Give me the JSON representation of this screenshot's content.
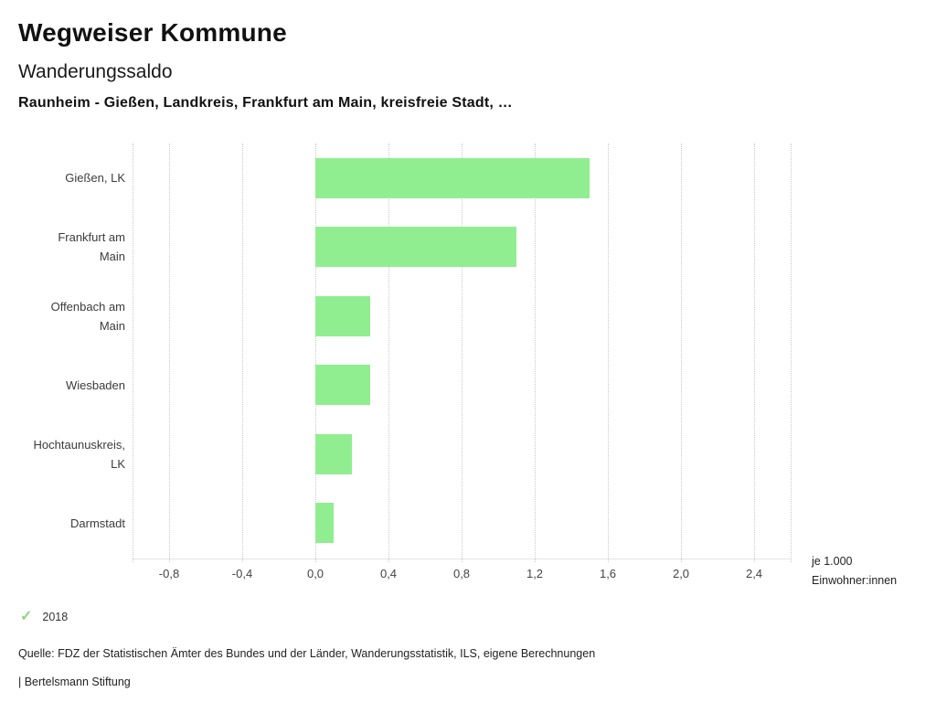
{
  "header": {
    "title": "Wegweiser Kommune",
    "subtitle": "Wanderungssaldo",
    "description": "Raunheim - Gießen, Landkreis, Frankfurt am Main, kreisfreie Stadt, …"
  },
  "chart_data": {
    "type": "bar",
    "orientation": "horizontal",
    "title": "Wanderungssaldo",
    "categories": [
      "Gießen, LK",
      "Frankfurt am Main",
      "Offenbach am Main",
      "Wiesbaden",
      "Hochtaunuskreis, LK",
      "Darmstadt"
    ],
    "series": [
      {
        "name": "2018",
        "values": [
          1.5,
          1.1,
          0.3,
          0.3,
          0.2,
          0.1
        ]
      }
    ],
    "xlabel": "je 1.000 Einwohner:innen",
    "unit_label": [
      "je 1.000",
      "Einwohner:innen"
    ],
    "xlim": [
      -1.0,
      2.6
    ],
    "x_ticks": [
      {
        "value": -0.8,
        "label": "-0,8"
      },
      {
        "value": -0.4,
        "label": "-0,4"
      },
      {
        "value": 0.0,
        "label": "0,0"
      },
      {
        "value": 0.4,
        "label": "0,4"
      },
      {
        "value": 0.8,
        "label": "0,8"
      },
      {
        "value": 1.2,
        "label": "1,2"
      },
      {
        "value": 1.6,
        "label": "1,6"
      },
      {
        "value": 2.0,
        "label": "2,0"
      },
      {
        "value": 2.4,
        "label": "2,4"
      }
    ],
    "grid": "vertical-dotted",
    "bar_color": "#90ee90"
  },
  "legend": {
    "items": [
      {
        "icon": "check",
        "glyph": "✓",
        "label": "2018",
        "color": "#8fd486"
      }
    ]
  },
  "footer": {
    "source": "Quelle: FDZ der Statistischen Ämter des Bundes und der Länder, Wanderungsstatistik, ILS, eigene Berechnungen",
    "branding": "| Bertelsmann Stiftung"
  }
}
